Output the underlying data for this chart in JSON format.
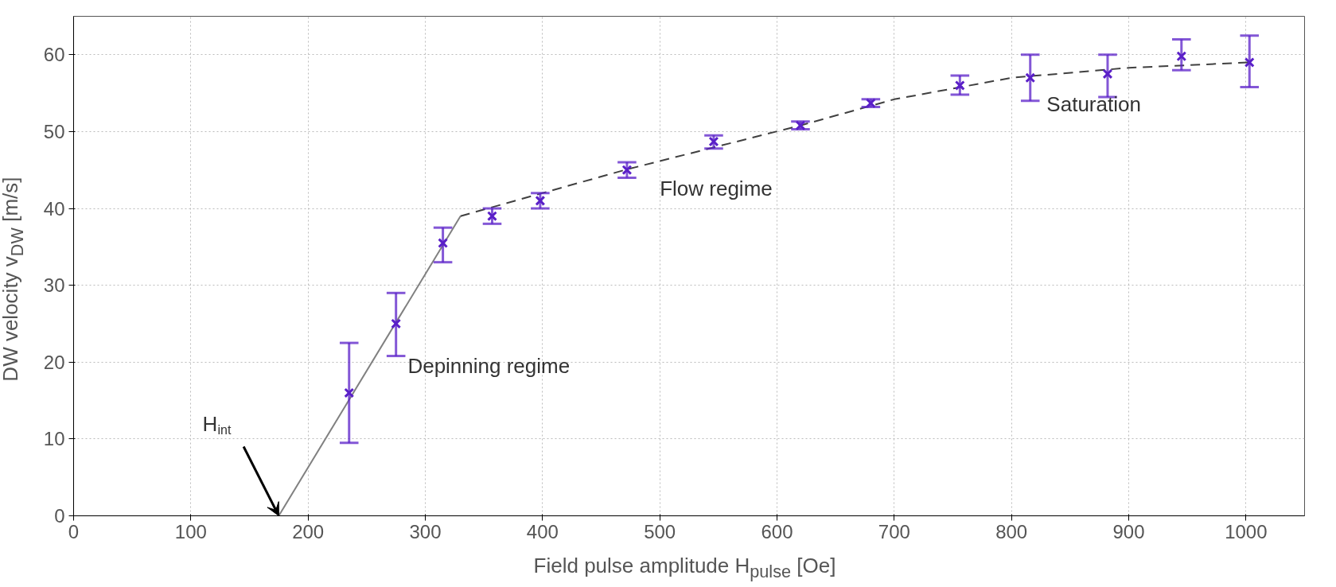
{
  "chart_data": {
    "type": "scatter",
    "xlabel": "Field pulse amplitude H$_{pulse}$ [Oe]",
    "ylabel": "DW velocity v$_{DW}$ [m/s]",
    "xlim": [
      0,
      1050
    ],
    "ylim": [
      0,
      65
    ],
    "xticks": [
      0,
      100,
      200,
      300,
      400,
      500,
      600,
      700,
      800,
      900,
      1000
    ],
    "yticks": [
      0,
      10,
      20,
      30,
      40,
      50,
      60
    ],
    "grid": true,
    "series": [
      {
        "type": "line",
        "color": "#808080",
        "line_style": "solid",
        "x": [
          175,
          330
        ],
        "values": [
          0,
          39
        ]
      },
      {
        "type": "line",
        "color": "#404040",
        "line_style": "dashed",
        "x": [
          330,
          470,
          620,
          700,
          800,
          900,
          1003
        ],
        "values": [
          39,
          45,
          50.8,
          54.2,
          57,
          58.3,
          59
        ]
      },
      {
        "marker": "cross",
        "color": "#5a1fc8",
        "x": [
          235,
          275,
          315,
          357,
          398,
          472,
          546,
          620,
          680,
          756,
          816,
          882,
          945,
          1003
        ],
        "values": [
          16,
          25,
          35.5,
          39,
          41,
          45,
          48.7,
          50.8,
          53.7,
          56,
          57,
          57.5,
          59.8,
          59
        ],
        "errors": [
          [
            9.5,
            22.5
          ],
          [
            20.8,
            29
          ],
          [
            33,
            37.5
          ],
          [
            38,
            40
          ],
          [
            40,
            42
          ],
          [
            44,
            46
          ],
          [
            47.8,
            49.5
          ],
          [
            50.3,
            51.3
          ],
          [
            53.2,
            54.2
          ],
          [
            54.8,
            57.3
          ],
          [
            54,
            60
          ],
          [
            54.5,
            60
          ],
          [
            58,
            62
          ],
          [
            55.8,
            62.5
          ]
        ]
      }
    ],
    "annotations": [
      {
        "text": "H$_{int}$",
        "x": 175,
        "y": 0
      },
      "Depinning regime",
      "Flow regime",
      "Saturation"
    ]
  }
}
